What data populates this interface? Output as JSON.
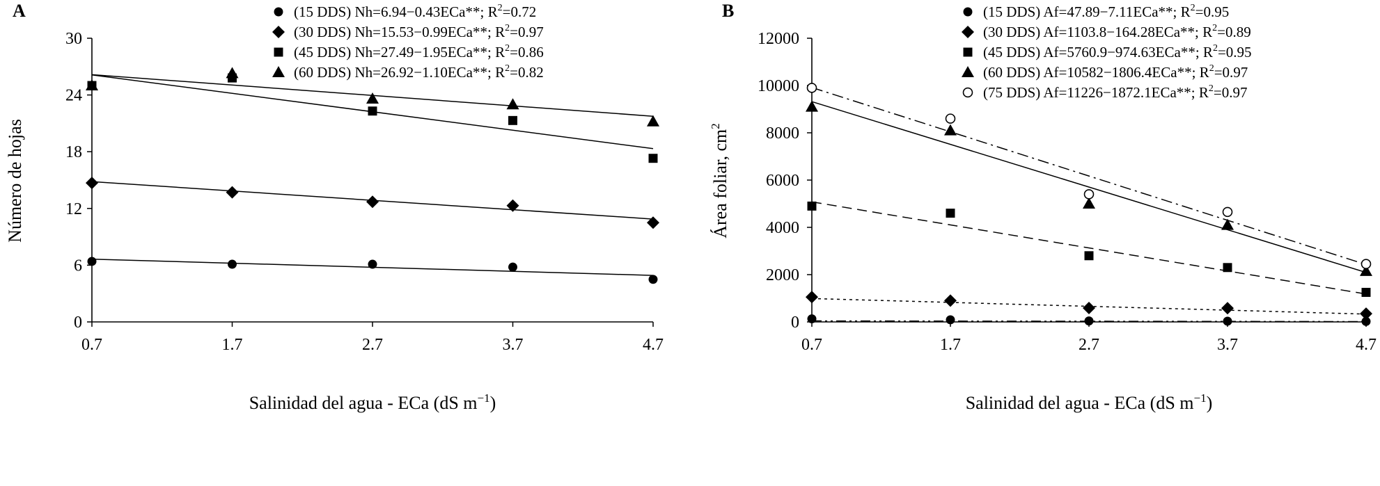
{
  "chart_data": [
    {
      "panel": "A",
      "type": "scatter",
      "xlabel": "Salinidad del agua - ECa (dS m",
      "xlabel_sup": "−1",
      "xlabel_close": ")",
      "ylabel": "Número de hojas",
      "x": [
        0.7,
        1.7,
        2.7,
        3.7,
        4.7
      ],
      "x_ticks": [
        "0.7",
        "1.7",
        "2.7",
        "3.7",
        "4.7"
      ],
      "y_ticks": [
        "0",
        "6",
        "12",
        "18",
        "24",
        "30"
      ],
      "ylim": [
        0,
        30
      ],
      "legend_position": "top-right",
      "series": [
        {
          "name": "15 DDS",
          "marker": "circle",
          "line": "solid",
          "intercept": 6.94,
          "slope": -0.43,
          "legend": {
            "prefix": "(15 DDS) Nh=6.94−0.43ECa**; R",
            "sup": "2",
            "suffix": "=0.72"
          },
          "values": [
            6.4,
            6.1,
            6.1,
            5.8,
            4.5
          ]
        },
        {
          "name": "30 DDS",
          "marker": "diamond",
          "line": "solid",
          "intercept": 15.53,
          "slope": -0.99,
          "legend": {
            "prefix": "(30 DDS) Nh=15.53−0.99ECa**; R",
            "sup": "2",
            "suffix": "=0.97"
          },
          "values": [
            14.7,
            13.7,
            12.7,
            12.3,
            10.5
          ]
        },
        {
          "name": "45 DDS",
          "marker": "square",
          "line": "solid",
          "intercept": 27.49,
          "slope": -1.95,
          "legend": {
            "prefix": "(45 DDS) Nh=27.49−1.95ECa**; R",
            "sup": "2",
            "suffix": "=0.86"
          },
          "values": [
            25.0,
            25.8,
            22.3,
            21.3,
            17.3
          ]
        },
        {
          "name": "60 DDS",
          "marker": "triangle",
          "line": "solid",
          "intercept": 26.92,
          "slope": -1.1,
          "legend": {
            "prefix": "(60 DDS) Nh=26.92−1.10ECa**; R",
            "sup": "2",
            "suffix": "=0.82"
          },
          "values": [
            25.0,
            26.3,
            23.6,
            23.0,
            21.2
          ]
        }
      ]
    },
    {
      "panel": "B",
      "type": "scatter",
      "xlabel": "Salinidad del agua - ECa (dS m",
      "xlabel_sup": "−1",
      "xlabel_close": ")",
      "ylabel": "Área foliar, cm",
      "ylabel_sup": "2",
      "x": [
        0.7,
        1.7,
        2.7,
        3.7,
        4.7
      ],
      "x_ticks": [
        "0.7",
        "1.7",
        "2.7",
        "3.7",
        "4.7"
      ],
      "y_ticks": [
        "0",
        "2000",
        "4000",
        "6000",
        "8000",
        "10000",
        "12000"
      ],
      "ylim": [
        0,
        12000
      ],
      "legend_position": "top-right",
      "series": [
        {
          "name": "15 DDS",
          "marker": "circle",
          "line": "dash-dot-dot",
          "intercept": 47.89,
          "slope": -7.11,
          "legend": {
            "prefix": "(15 DDS) Af=47.89−7.11ECa**; R",
            "sup": "2",
            "suffix": "=0.95"
          },
          "values": [
            130,
            90,
            40,
            30,
            20
          ]
        },
        {
          "name": "30 DDS",
          "marker": "diamond",
          "line": "dotted",
          "intercept": 1103.8,
          "slope": -164.28,
          "legend": {
            "prefix": "(30 DDS) Af=1103.8−164.28ECa**; R",
            "sup": "2",
            "suffix": "=0.89"
          },
          "values": [
            1050,
            900,
            590,
            580,
            350
          ]
        },
        {
          "name": "45 DDS",
          "marker": "square",
          "line": "dashed",
          "intercept": 5760.9,
          "slope": -974.63,
          "legend": {
            "prefix": "(45 DDS) Af=5760.9−974.63ECa**; R",
            "sup": "2",
            "suffix": "=0.95"
          },
          "values": [
            4900,
            4600,
            2800,
            2300,
            1250
          ]
        },
        {
          "name": "60 DDS",
          "marker": "triangle",
          "line": "solid",
          "intercept": 10582,
          "slope": -1806.4,
          "legend": {
            "prefix": "(60 DDS) Af=10582−1806.4ECa**; R",
            "sup": "2",
            "suffix": "=0.97"
          },
          "values": [
            9100,
            8100,
            5000,
            4100,
            2150
          ]
        },
        {
          "name": "75 DDS",
          "marker": "open-circle",
          "line": "dash-dot",
          "intercept": 11226,
          "slope": -1872.1,
          "legend": {
            "prefix": "(75 DDS) Af=11226−1872.1ECa**; R",
            "sup": "2",
            "suffix": "=0.97"
          },
          "values": [
            9900,
            8600,
            5400,
            4650,
            2450
          ]
        }
      ]
    }
  ]
}
